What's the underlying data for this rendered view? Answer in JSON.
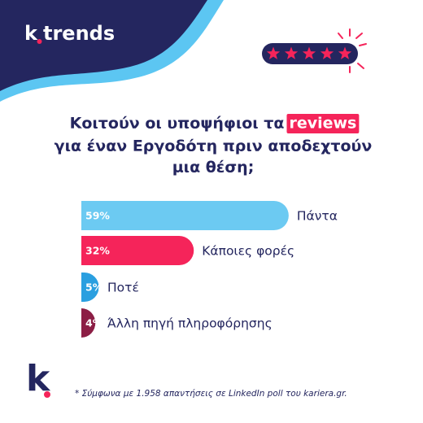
{
  "logo": {
    "brand": "k",
    "name": "trends",
    "corner_mark": "k"
  },
  "chart_data": {
    "type": "bar",
    "orientation": "horizontal",
    "title": [
      "Κοιτούν οι υποψήφιοι τα",
      "reviews",
      "για έναν Εργοδότη πριν αποδεχτούν",
      "μια θέση;"
    ],
    "categories": [
      "Πάντα",
      "Κάποιες φορές",
      "Ποτέ",
      "Άλλη πηγή πληροφόρησης"
    ],
    "values": [
      59,
      32,
      5,
      4
    ],
    "value_labels": [
      "59%",
      "32%",
      "5%",
      "4%"
    ],
    "colors": [
      "#6ccaf2",
      "#f5245a",
      "#2a9fe0",
      "#8c1e45"
    ]
  },
  "footnote": "* Σύμφωνα με 1.958 απαντήσεις σε LinkedIn poll του kariera.gr."
}
